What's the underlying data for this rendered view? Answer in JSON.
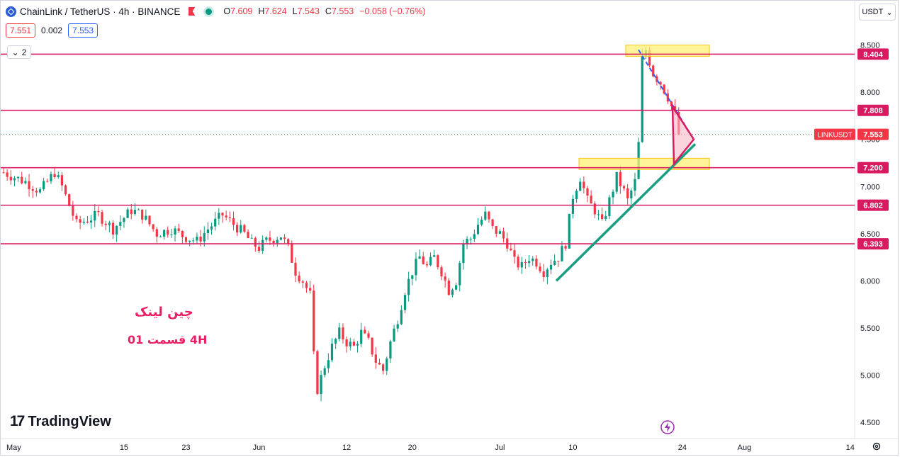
{
  "header": {
    "symbol": "ChainLink / TetherUS · 4h · BINANCE",
    "ohlc": [
      {
        "k": "O",
        "v": "7.609"
      },
      {
        "k": "H",
        "v": "7.624"
      },
      {
        "k": "L",
        "v": "7.543"
      },
      {
        "k": "C",
        "v": "7.553"
      },
      {
        "k": "",
        "v": "−0.058 (−0.76%)"
      }
    ],
    "bid": "7.551",
    "spread": "0.002",
    "ask": "7.553",
    "indicator_count": "2",
    "currency": "USDT"
  },
  "brand": {
    "logo_mark": "17",
    "name": "TradingView"
  },
  "annotations": {
    "title_fa": "چین لینک",
    "subtitle_fa": "4H  قسمت 01"
  },
  "colors": {
    "up": "#089981",
    "down": "#f23645",
    "level": "#d81b60",
    "trend": "#1a9e82",
    "highlight": "#fff176"
  },
  "chart_data": {
    "type": "candlestick",
    "symbol": "LINKUSDT",
    "timeframe": "4h",
    "exchange": "BINANCE",
    "ylim": [
      4.35,
      8.7
    ],
    "y_ticks": [
      "8.500",
      "8.000",
      "7.500",
      "7.000",
      "6.500",
      "6.000",
      "5.500",
      "5.000",
      "4.500"
    ],
    "x_ticks": [
      "May",
      "15",
      "23",
      "Jun",
      "12",
      "20",
      "Jul",
      "10",
      "24",
      "Aug",
      "14"
    ],
    "last_price": {
      "label": "LINKUSDT",
      "value": 7.553,
      "text": "7.553"
    },
    "levels": [
      {
        "value": 8.404,
        "text": "8.404"
      },
      {
        "value": 7.808,
        "text": "7.808"
      },
      {
        "value": 7.2,
        "text": "7.200"
      },
      {
        "value": 6.802,
        "text": "6.802"
      },
      {
        "value": 6.393,
        "text": "6.393"
      }
    ],
    "path": [
      [
        0,
        7.15
      ],
      [
        6,
        7.05
      ],
      [
        10,
        6.95
      ],
      [
        14,
        7.15
      ],
      [
        16,
        7.0
      ],
      [
        20,
        6.6
      ],
      [
        26,
        6.7
      ],
      [
        30,
        6.55
      ],
      [
        35,
        6.75
      ],
      [
        38,
        6.7
      ],
      [
        42,
        6.5
      ],
      [
        46,
        6.55
      ],
      [
        49,
        6.48
      ],
      [
        53,
        6.42
      ],
      [
        56,
        6.55
      ],
      [
        60,
        6.7
      ],
      [
        63,
        6.6
      ],
      [
        66,
        6.5
      ],
      [
        68,
        6.4
      ],
      [
        70,
        6.35
      ],
      [
        72,
        6.42
      ],
      [
        74,
        6.45
      ],
      [
        76,
        6.48
      ],
      [
        78,
        6.35
      ],
      [
        80,
        6.1
      ],
      [
        82,
        6.0
      ],
      [
        84,
        5.85
      ],
      [
        85,
        5.2
      ],
      [
        86,
        4.85
      ],
      [
        88,
        5.1
      ],
      [
        90,
        5.3
      ],
      [
        92,
        5.45
      ],
      [
        94,
        5.35
      ],
      [
        96,
        5.3
      ],
      [
        98,
        5.45
      ],
      [
        100,
        5.35
      ],
      [
        102,
        5.15
      ],
      [
        104,
        5.05
      ],
      [
        106,
        5.35
      ],
      [
        108,
        5.6
      ],
      [
        110,
        5.9
      ],
      [
        112,
        6.1
      ],
      [
        114,
        6.25
      ],
      [
        116,
        6.15
      ],
      [
        118,
        6.25
      ],
      [
        120,
        6.1
      ],
      [
        122,
        5.9
      ],
      [
        124,
        6.0
      ],
      [
        126,
        6.4
      ],
      [
        128,
        6.45
      ],
      [
        130,
        6.6
      ],
      [
        132,
        6.7
      ],
      [
        134,
        6.55
      ],
      [
        136,
        6.5
      ],
      [
        138,
        6.4
      ],
      [
        140,
        6.2
      ],
      [
        142,
        6.15
      ],
      [
        144,
        6.25
      ],
      [
        146,
        6.2
      ],
      [
        148,
        6.1
      ],
      [
        150,
        6.2
      ],
      [
        152,
        6.25
      ],
      [
        154,
        6.4
      ],
      [
        156,
        6.9
      ],
      [
        158,
        7.1
      ],
      [
        160,
        6.85
      ],
      [
        162,
        6.75
      ],
      [
        164,
        6.6
      ],
      [
        166,
        6.85
      ],
      [
        168,
        7.1
      ],
      [
        170,
        6.95
      ],
      [
        171,
        6.85
      ],
      [
        173,
        7.05
      ],
      [
        174,
        7.45
      ],
      [
        175,
        8.35
      ],
      [
        176,
        8.45
      ],
      [
        178,
        8.2
      ],
      [
        180,
        8.1
      ],
      [
        182,
        7.95
      ],
      [
        184,
        7.75
      ],
      [
        185,
        7.553
      ]
    ]
  }
}
